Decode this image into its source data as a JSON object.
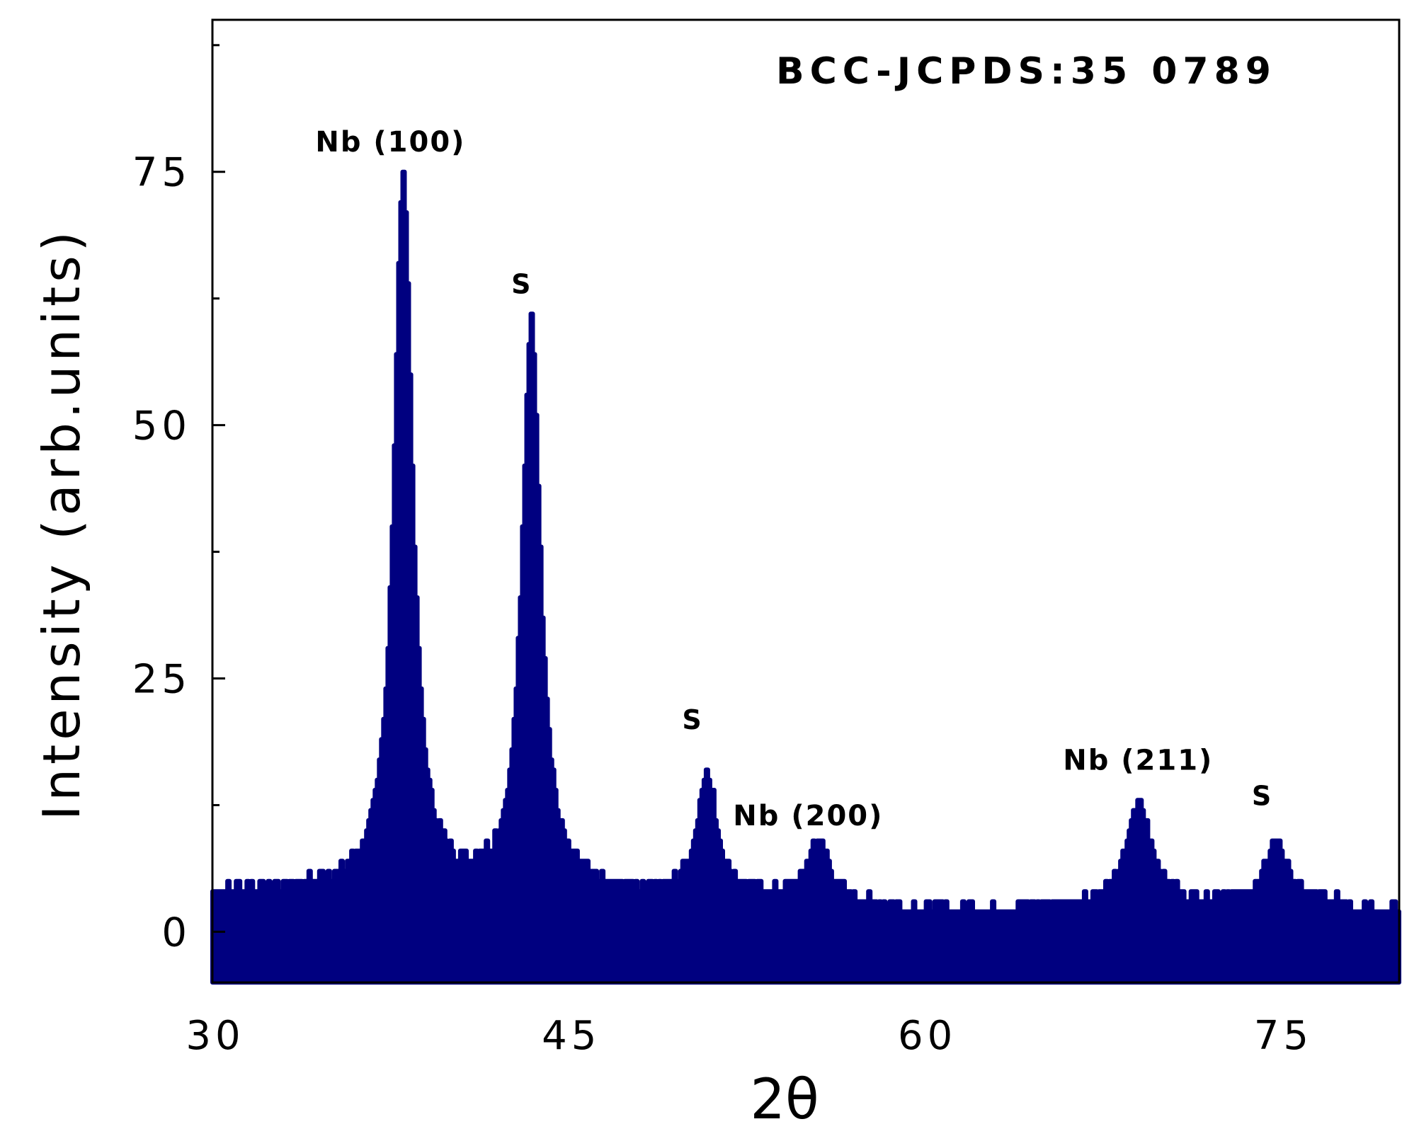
{
  "chart_data": {
    "type": "area",
    "title": "",
    "xlabel": "2θ",
    "ylabel": "Intensity (arb.units)",
    "xlim": [
      30,
      80
    ],
    "ylim": [
      -5,
      90
    ],
    "x_ticks": [
      30,
      45,
      60,
      75
    ],
    "y_ticks": [
      0,
      25,
      50,
      75
    ],
    "grid": false,
    "legend": "none",
    "line_color": "#000080",
    "reference_note": "BCC-JCPDS:35 0789",
    "annotations": [
      {
        "text": "Nb (100)",
        "x": 37.5,
        "y": 77
      },
      {
        "text": "S",
        "x": 43.0,
        "y": 63
      },
      {
        "text": "S",
        "x": 50.2,
        "y": 20
      },
      {
        "text": "Nb (200)",
        "x": 55.1,
        "y": 10.5
      },
      {
        "text": "Nb (211)",
        "x": 69.0,
        "y": 16
      },
      {
        "text": "S",
        "x": 74.2,
        "y": 12.5
      }
    ],
    "series": [
      {
        "baseline": [
          [
            30,
            4
          ],
          [
            36,
            4
          ],
          [
            42,
            4
          ],
          [
            48,
            3.5
          ],
          [
            54,
            3
          ],
          [
            60,
            2
          ],
          [
            66,
            2.5
          ],
          [
            72,
            3
          ],
          [
            76,
            3
          ],
          [
            80,
            2
          ]
        ],
        "peaks": [
          {
            "center": 38.0,
            "height": 70,
            "width": 0.45
          },
          {
            "center": 43.4,
            "height": 56,
            "width": 0.45
          },
          {
            "center": 50.8,
            "height": 12,
            "width": 0.5
          },
          {
            "center": 55.5,
            "height": 6,
            "width": 0.6
          },
          {
            "center": 69.0,
            "height": 10,
            "width": 0.6
          },
          {
            "center": 74.8,
            "height": 6,
            "width": 0.5
          }
        ]
      }
    ]
  }
}
